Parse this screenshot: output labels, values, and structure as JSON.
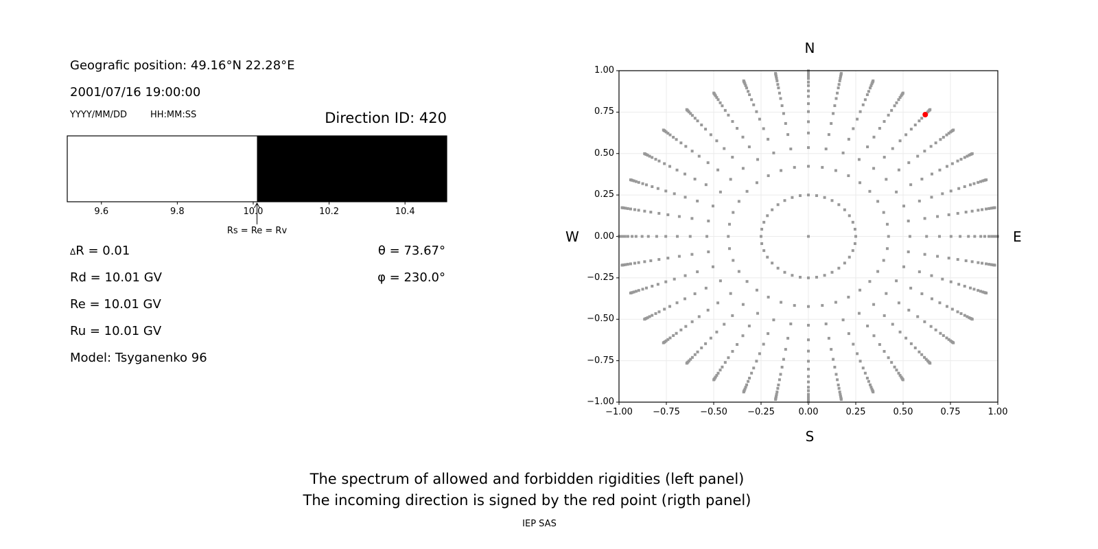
{
  "left_panel": {
    "geo_position": "Geografic position: 49.16°N 22.28°E",
    "datetime": "2001/07/16 19:00:00",
    "date_format": "YYYY/MM/DD",
    "time_format": "HH:MM:SS",
    "direction_id": "Direction ID: 420",
    "delta_r": "R = 0.01",
    "delta_symbol": "Δ",
    "rd": "Rd = 10.01 GV",
    "re": "Re = 10.01 GV",
    "ru": "Ru = 10.01 GV",
    "model": "Model: Tsyganenko 96",
    "theta": "θ = 73.67°",
    "phi": "φ = 230.0°"
  },
  "chart_data": [
    {
      "type": "bar",
      "xlim": [
        9.51,
        10.51
      ],
      "ticks": [
        "9.6",
        "9.8",
        "10.0",
        "10.2",
        "10.4"
      ],
      "tick_values": [
        9.6,
        9.8,
        10.0,
        10.2,
        10.4
      ],
      "segments": [
        {
          "from": 9.51,
          "to": 10.01,
          "color": "#ffffff"
        },
        {
          "from": 10.01,
          "to": 10.51,
          "color": "#000000"
        }
      ],
      "annotation": {
        "text": "Rs = Re = Rv",
        "x": 10.01
      }
    },
    {
      "type": "scatter",
      "xlim": [
        -1.0,
        1.0
      ],
      "ylim": [
        -1.0,
        1.0
      ],
      "grid": true,
      "ticks": [
        "−1.00",
        "−0.75",
        "−0.50",
        "−0.25",
        "0.00",
        "0.25",
        "0.50",
        "0.75",
        "1.00"
      ],
      "tick_values": [
        -1,
        -0.75,
        -0.5,
        -0.25,
        0,
        0.25,
        0.5,
        0.75,
        1
      ],
      "compass": {
        "north": "N",
        "south": "S",
        "west": "W",
        "east": "E"
      },
      "directions": {
        "center": [
          0,
          0
        ],
        "azimuth_step_deg": 10,
        "radii": [
          0.25,
          0.423,
          0.536,
          0.624,
          0.692,
          0.753,
          0.801,
          0.845,
          0.878,
          0.91,
          0.931,
          0.953,
          0.968,
          0.98,
          0.989,
          0.995,
          0.999
        ],
        "color": "#999999"
      },
      "selected_point": {
        "x": 0.617,
        "y": 0.735,
        "color": "#ff0000"
      }
    }
  ],
  "footer": {
    "line1": "The spectrum of allowed and forbidden rigidities (left panel)",
    "line2": "The incoming direction is signed by the red point (rigth panel)",
    "credit": "IEP SAS"
  }
}
